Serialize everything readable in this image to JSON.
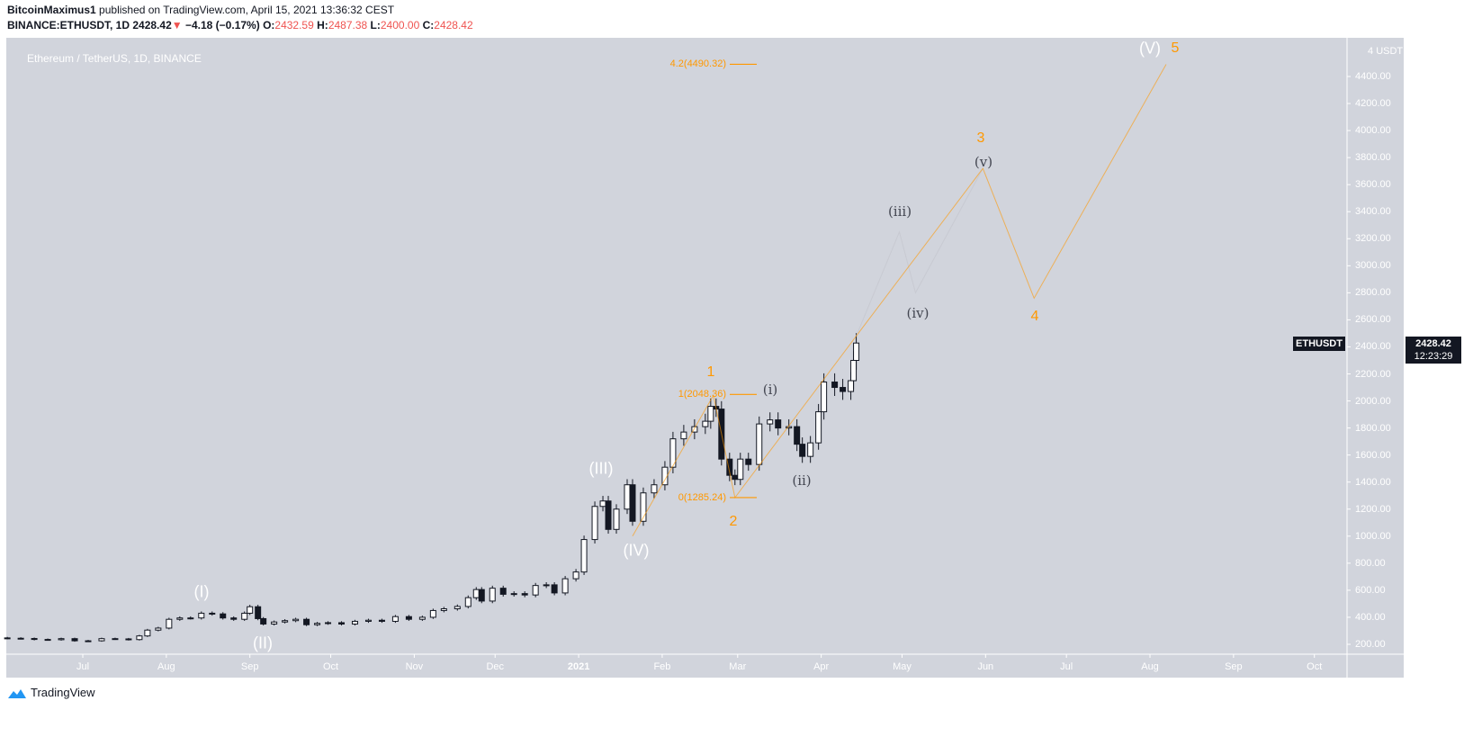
{
  "header": {
    "publisher": "BitcoinMaximus1",
    "published_text": "published on TradingView.com, April 15, 2021 13:36:32 CEST",
    "symbol": "BINANCE:ETHUSDT, 1D",
    "last": "2428.42",
    "change": "−4.18 (−0.17%)",
    "o_label": "O:",
    "o": "2432.59",
    "h_label": "H:",
    "h": "2487.38",
    "l_label": "L:",
    "l": "2400.00",
    "c_label": "C:",
    "c": "2428.42",
    "down_color": "#ef5350"
  },
  "footer": {
    "brand": "TradingView",
    "logo_icon": "tradingview-cloud-icon",
    "brand_color": "#2196f3"
  },
  "chart_data": {
    "type": "candlestick",
    "title": "Ethereum / TetherUS, 1D, BINANCE",
    "ylabel": "USDT",
    "ylim": [
      150,
      4700
    ],
    "grid": false,
    "background": "#d1d4dc",
    "y_ticks": [
      "4400.00",
      "4200.00",
      "4000.00",
      "3800.00",
      "3600.00",
      "3400.00",
      "3200.00",
      "3000.00",
      "2800.00",
      "2600.00",
      "2400.00",
      "2200.00",
      "2000.00",
      "1800.00",
      "1600.00",
      "1400.00",
      "1200.00",
      "1000.00",
      "800.00",
      "600.00",
      "400.00",
      "200.00"
    ],
    "y_top_tick": "4",
    "x_ticks": [
      {
        "label": "Jul",
        "date": "2020-07-01"
      },
      {
        "label": "Aug",
        "date": "2020-08-01"
      },
      {
        "label": "Sep",
        "date": "2020-09-01"
      },
      {
        "label": "Oct",
        "date": "2020-10-01"
      },
      {
        "label": "Nov",
        "date": "2020-11-01"
      },
      {
        "label": "Dec",
        "date": "2020-12-01"
      },
      {
        "label": "2021",
        "date": "2021-01-01"
      },
      {
        "label": "Feb",
        "date": "2021-02-01"
      },
      {
        "label": "Mar",
        "date": "2021-03-01"
      },
      {
        "label": "Apr",
        "date": "2021-04-01"
      },
      {
        "label": "May",
        "date": "2021-05-01"
      },
      {
        "label": "Jun",
        "date": "2021-06-01"
      },
      {
        "label": "Jul",
        "date": "2021-07-01"
      },
      {
        "label": "Aug",
        "date": "2021-08-01"
      },
      {
        "label": "Sep",
        "date": "2021-09-01"
      },
      {
        "label": "Oct",
        "date": "2021-10-01"
      }
    ],
    "closes": [
      [
        "2020-06-03",
        245
      ],
      [
        "2020-06-08",
        243
      ],
      [
        "2020-06-13",
        236
      ],
      [
        "2020-06-18",
        234
      ],
      [
        "2020-06-23",
        242
      ],
      [
        "2020-06-28",
        226
      ],
      [
        "2020-07-03",
        226
      ],
      [
        "2020-07-08",
        242
      ],
      [
        "2020-07-13",
        240
      ],
      [
        "2020-07-18",
        235
      ],
      [
        "2020-07-22",
        262
      ],
      [
        "2020-07-25",
        305
      ],
      [
        "2020-07-29",
        320
      ],
      [
        "2020-08-02",
        385
      ],
      [
        "2020-08-06",
        395
      ],
      [
        "2020-08-10",
        395
      ],
      [
        "2020-08-14",
        430
      ],
      [
        "2020-08-18",
        425
      ],
      [
        "2020-08-22",
        395
      ],
      [
        "2020-08-26",
        385
      ],
      [
        "2020-08-30",
        430
      ],
      [
        "2020-09-01",
        478
      ],
      [
        "2020-09-04",
        390
      ],
      [
        "2020-09-06",
        350
      ],
      [
        "2020-09-10",
        365
      ],
      [
        "2020-09-14",
        375
      ],
      [
        "2020-09-18",
        385
      ],
      [
        "2020-09-22",
        345
      ],
      [
        "2020-09-26",
        355
      ],
      [
        "2020-09-30",
        360
      ],
      [
        "2020-10-05",
        350
      ],
      [
        "2020-10-10",
        370
      ],
      [
        "2020-10-15",
        378
      ],
      [
        "2020-10-20",
        370
      ],
      [
        "2020-10-25",
        405
      ],
      [
        "2020-10-30",
        385
      ],
      [
        "2020-11-04",
        400
      ],
      [
        "2020-11-08",
        450
      ],
      [
        "2020-11-12",
        463
      ],
      [
        "2020-11-17",
        480
      ],
      [
        "2020-11-21",
        545
      ],
      [
        "2020-11-24",
        605
      ],
      [
        "2020-11-26",
        520
      ],
      [
        "2020-11-30",
        615
      ],
      [
        "2020-12-04",
        570
      ],
      [
        "2020-12-08",
        575
      ],
      [
        "2020-12-12",
        565
      ],
      [
        "2020-12-16",
        635
      ],
      [
        "2020-12-20",
        640
      ],
      [
        "2020-12-23",
        580
      ],
      [
        "2020-12-27",
        685
      ],
      [
        "2020-12-31",
        735
      ],
      [
        "2021-01-03",
        975
      ],
      [
        "2021-01-07",
        1220
      ],
      [
        "2021-01-10",
        1260
      ],
      [
        "2021-01-12",
        1050
      ],
      [
        "2021-01-15",
        1200
      ],
      [
        "2021-01-19",
        1380
      ],
      [
        "2021-01-21",
        1110
      ],
      [
        "2021-01-25",
        1320
      ],
      [
        "2021-01-29",
        1380
      ],
      [
        "2021-02-02",
        1510
      ],
      [
        "2021-02-05",
        1720
      ],
      [
        "2021-02-09",
        1770
      ],
      [
        "2021-02-13",
        1810
      ],
      [
        "2021-02-17",
        1850
      ],
      [
        "2021-02-19",
        1960
      ],
      [
        "2021-02-21",
        1940
      ],
      [
        "2021-02-23",
        1570
      ],
      [
        "2021-02-26",
        1450
      ],
      [
        "2021-02-28",
        1420
      ],
      [
        "2021-03-02",
        1570
      ],
      [
        "2021-03-05",
        1530
      ],
      [
        "2021-03-09",
        1830
      ],
      [
        "2021-03-13",
        1860
      ],
      [
        "2021-03-16",
        1800
      ],
      [
        "2021-03-20",
        1810
      ],
      [
        "2021-03-23",
        1680
      ],
      [
        "2021-03-25",
        1590
      ],
      [
        "2021-03-28",
        1690
      ],
      [
        "2021-03-31",
        1920
      ],
      [
        "2021-04-02",
        2140
      ],
      [
        "2021-04-06",
        2100
      ],
      [
        "2021-04-09",
        2070
      ],
      [
        "2021-04-12",
        2150
      ],
      [
        "2021-04-13",
        2300
      ],
      [
        "2021-04-14",
        2428.42
      ]
    ],
    "up_color": "#ffffff",
    "down_color": "#131722",
    "wave_projection": {
      "color": "#ff9800",
      "points": [
        [
          "2021-01-21",
          1000
        ],
        [
          "2021-02-20",
          2041
        ],
        [
          "2021-02-28",
          1285
        ],
        [
          "2021-04-14",
          2480
        ],
        [
          "2021-05-31",
          3720
        ],
        [
          "2021-06-19",
          2760
        ],
        [
          "2021-08-07",
          4490
        ]
      ]
    },
    "subwave_projection": {
      "color": "#c8cad2",
      "points": [
        [
          "2021-04-14",
          2480
        ],
        [
          "2021-04-30",
          3250
        ],
        [
          "2021-05-06",
          2800
        ],
        [
          "2021-05-31",
          3720
        ]
      ]
    },
    "fib_levels": [
      {
        "label": "4.2(4490.32)",
        "price": 4490.32
      },
      {
        "label": "1(2048.36)",
        "price": 2048.36
      },
      {
        "label": "0(1285.24)",
        "price": 1285.24
      }
    ],
    "wave_labels": {
      "major": [
        "(I)",
        "(II)",
        "(III)",
        "(IV)",
        "(V)"
      ],
      "intermediate": [
        "1",
        "2",
        "3",
        "4",
        "5"
      ],
      "minor": [
        "(i)",
        "(ii)",
        "(iii)",
        "(iv)",
        "(v)"
      ]
    },
    "last_price_tag": {
      "symbol": "ETHUSDT",
      "price": "2428.42",
      "countdown": "12:23:29"
    }
  }
}
